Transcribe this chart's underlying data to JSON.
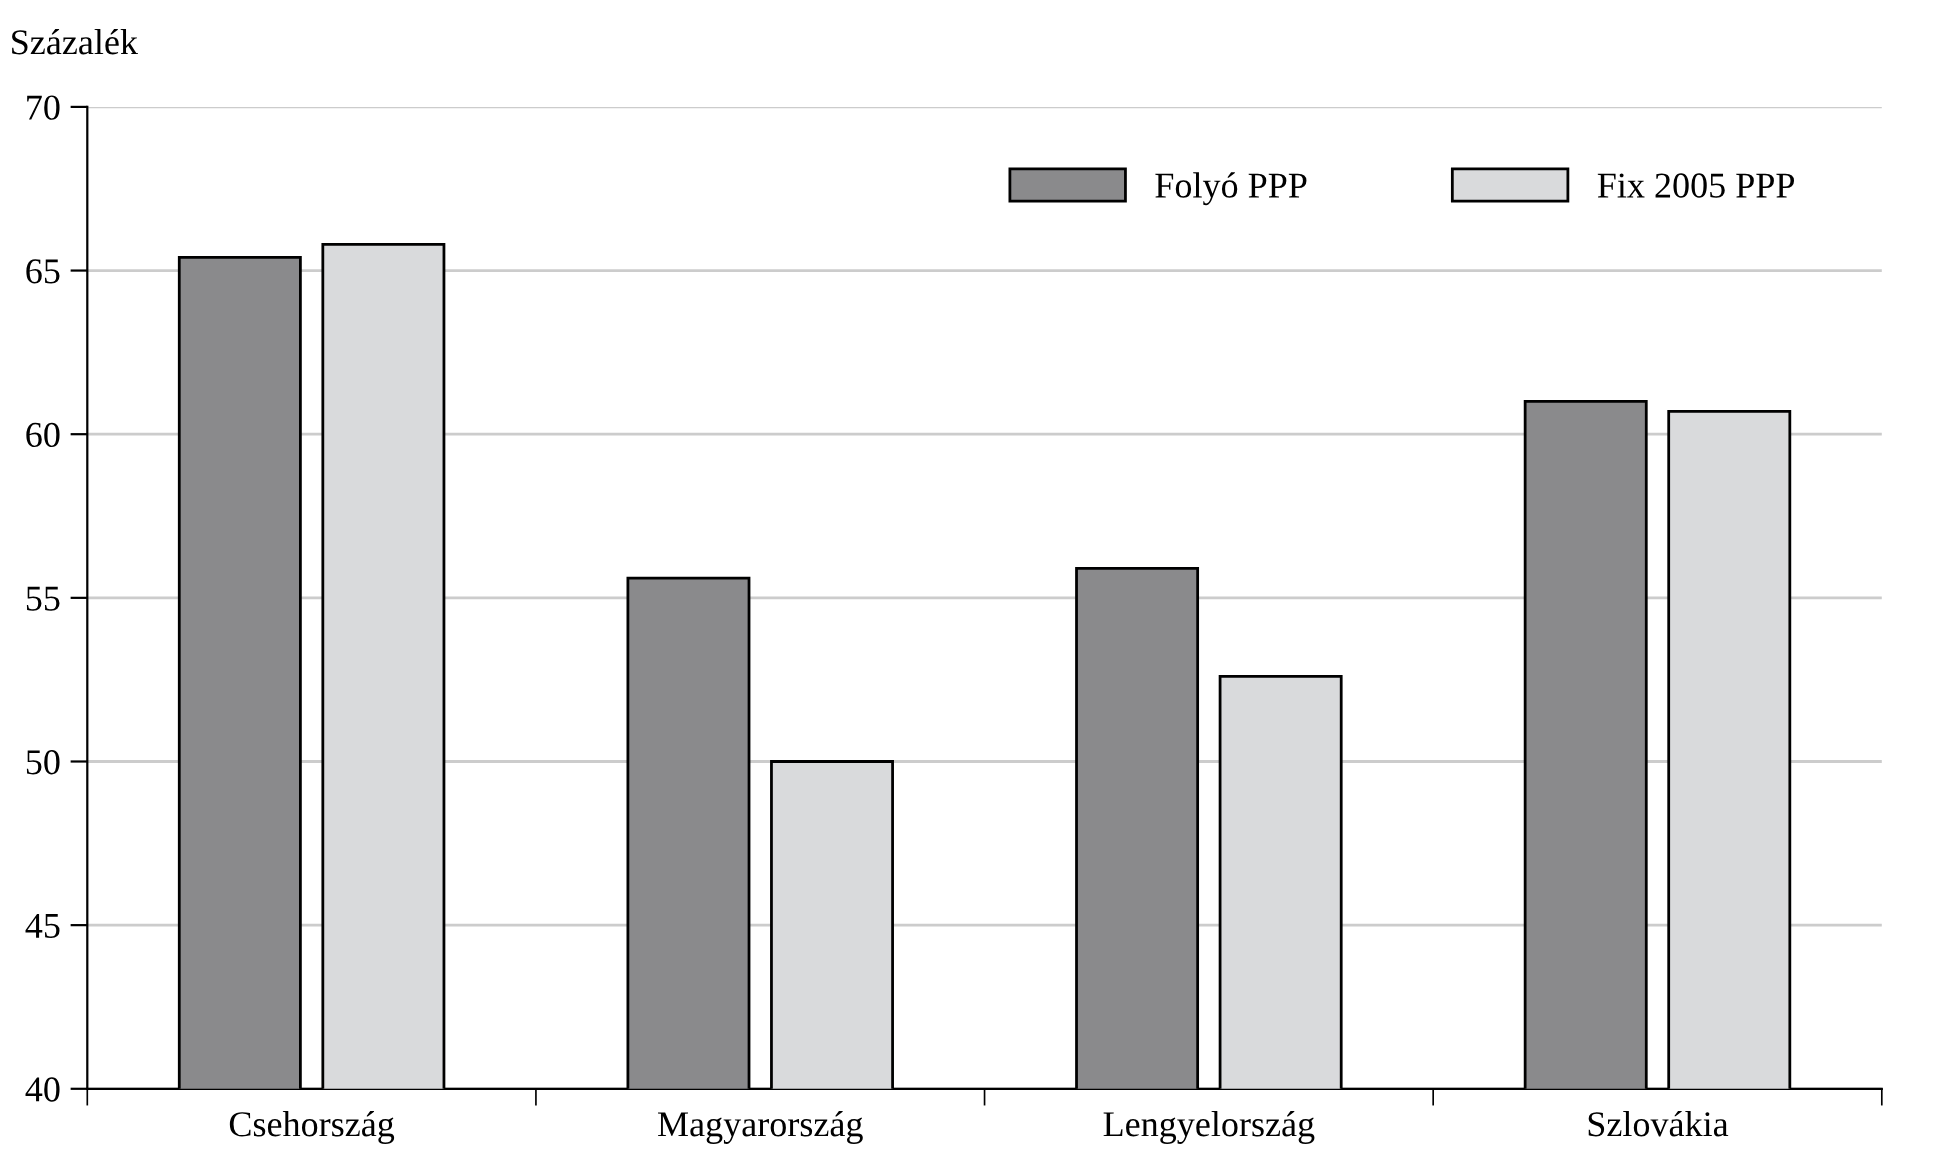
{
  "chart_data": {
    "type": "bar",
    "ylabel": "Százalék",
    "categories": [
      "Csehország",
      "Magyarország",
      "Lengyelország",
      "Szlovákia"
    ],
    "series": [
      {
        "name": "Folyó PPP",
        "color": "#8a8a8c",
        "values": [
          65.4,
          55.6,
          55.9,
          61.0
        ]
      },
      {
        "name": "Fix 2005 PPP",
        "color": "#d9dadc",
        "values": [
          65.8,
          50.0,
          52.6,
          60.7
        ]
      }
    ],
    "ylim": [
      40,
      70
    ],
    "yticks": [
      40,
      45,
      50,
      55,
      60,
      65,
      70
    ],
    "grid": "y",
    "legend": "top right"
  }
}
